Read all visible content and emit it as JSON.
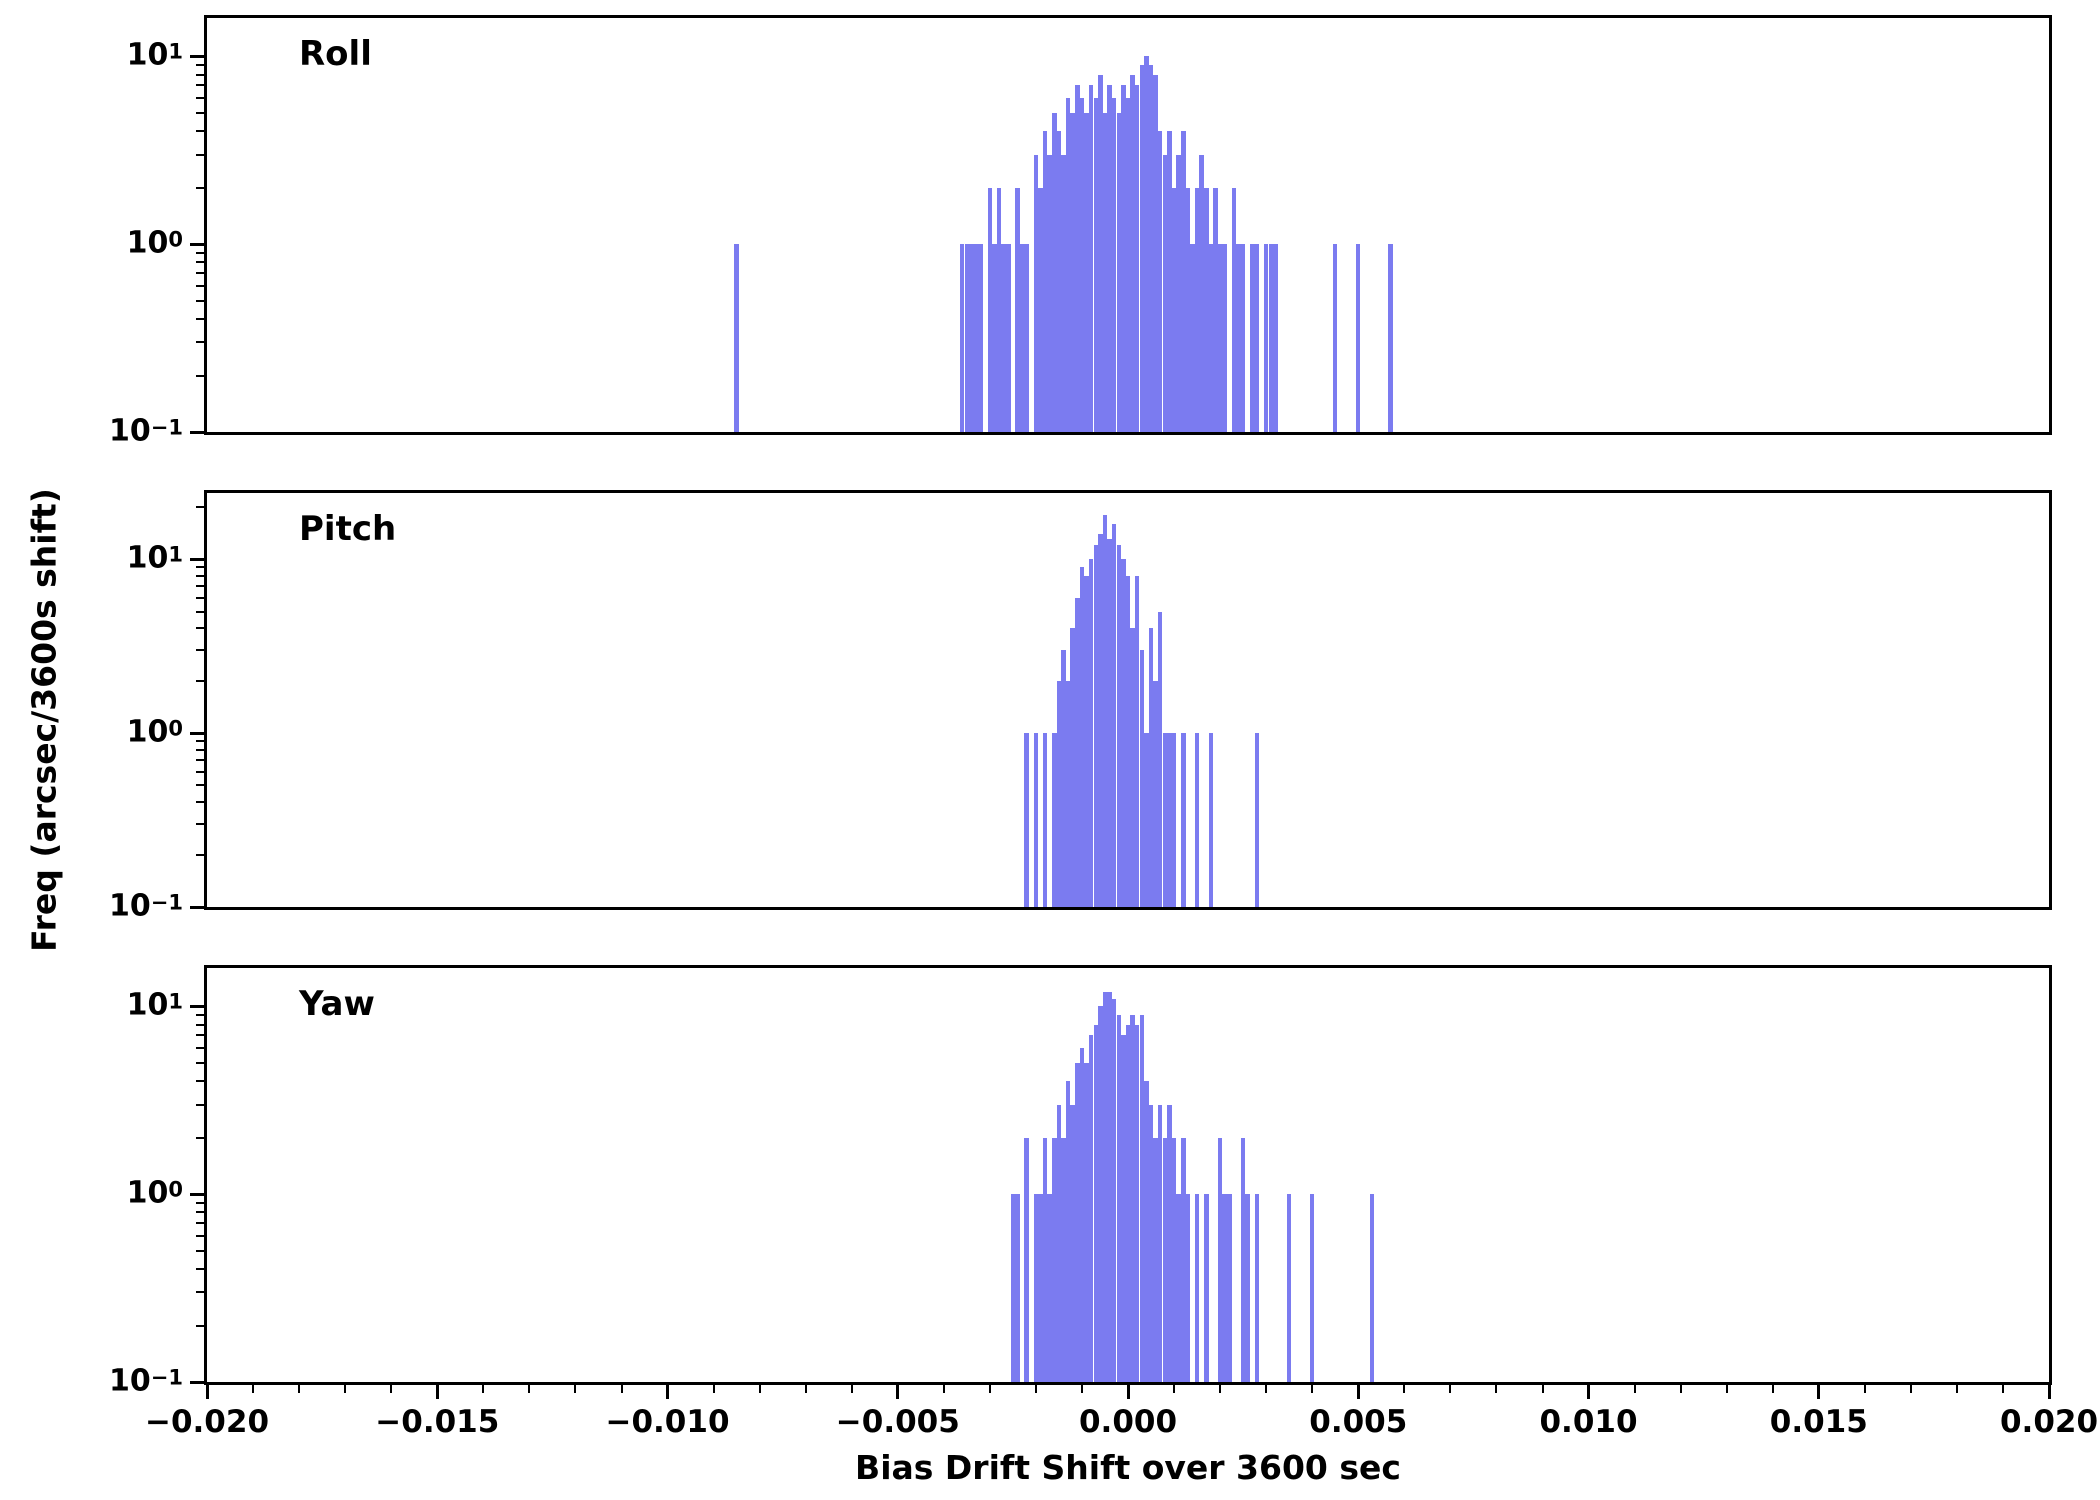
{
  "chart_data": {
    "type": "bar",
    "subtype": "histogram",
    "title": "",
    "xlabel": "Bias Drift Shift over 3600 sec",
    "ylabel": "Freq (arcsec/3600s shift)",
    "yscale": "log",
    "grid": false,
    "legend": "none",
    "bar_color": "#7b7bf0",
    "bin_width": 0.0001,
    "xlim": [
      -0.02,
      0.02
    ],
    "xticks": [
      {
        "v": -0.02,
        "label": "−0.020"
      },
      {
        "v": -0.015,
        "label": "−0.015"
      },
      {
        "v": -0.01,
        "label": "−0.010"
      },
      {
        "v": -0.005,
        "label": "−0.005"
      },
      {
        "v": 0.0,
        "label": "0.000"
      },
      {
        "v": 0.005,
        "label": "0.005"
      },
      {
        "v": 0.01,
        "label": "0.010"
      },
      {
        "v": 0.015,
        "label": "0.015"
      },
      {
        "v": 0.02,
        "label": "0.020"
      }
    ],
    "xtick_minor_step": 0.001,
    "yticks": [
      {
        "exp": 1,
        "label": "10^1"
      },
      {
        "exp": 0,
        "label": "10^0"
      },
      {
        "exp": -1,
        "label": "10^-1"
      }
    ],
    "panels": [
      {
        "title": "Roll",
        "ylim": [
          0.1,
          16
        ],
        "bars": [
          [
            -0.0085,
            1
          ],
          [
            -0.0036,
            1
          ],
          [
            -0.0035,
            1
          ],
          [
            -0.0034,
            1
          ],
          [
            -0.0033,
            1
          ],
          [
            -0.0032,
            1
          ],
          [
            -0.003,
            2
          ],
          [
            -0.0029,
            1
          ],
          [
            -0.0028,
            2
          ],
          [
            -0.0027,
            1
          ],
          [
            -0.0026,
            1
          ],
          [
            -0.0024,
            2
          ],
          [
            -0.0023,
            1
          ],
          [
            -0.0022,
            1
          ],
          [
            -0.002,
            3
          ],
          [
            -0.0019,
            2
          ],
          [
            -0.0018,
            4
          ],
          [
            -0.0017,
            3
          ],
          [
            -0.0016,
            5
          ],
          [
            -0.0015,
            4
          ],
          [
            -0.0014,
            3
          ],
          [
            -0.0013,
            6
          ],
          [
            -0.0012,
            5
          ],
          [
            -0.0011,
            7
          ],
          [
            -0.001,
            6
          ],
          [
            -0.0009,
            5
          ],
          [
            -0.0008,
            7
          ],
          [
            -0.0007,
            6
          ],
          [
            -0.0006,
            8
          ],
          [
            -0.0005,
            5
          ],
          [
            -0.0004,
            7
          ],
          [
            -0.0003,
            6
          ],
          [
            -0.0002,
            5
          ],
          [
            -0.0001,
            7
          ],
          [
            0,
            6
          ],
          [
            0.0001,
            8
          ],
          [
            0.0002,
            7
          ],
          [
            0.0003,
            9
          ],
          [
            0.0004,
            10
          ],
          [
            0.0005,
            9
          ],
          [
            0.0006,
            8
          ],
          [
            0.0007,
            4
          ],
          [
            0.0008,
            3
          ],
          [
            0.0009,
            4
          ],
          [
            0.001,
            2
          ],
          [
            0.0011,
            3
          ],
          [
            0.0012,
            4
          ],
          [
            0.0013,
            2
          ],
          [
            0.0014,
            1
          ],
          [
            0.0015,
            2
          ],
          [
            0.0016,
            3
          ],
          [
            0.0017,
            2
          ],
          [
            0.0018,
            1
          ],
          [
            0.0019,
            2
          ],
          [
            0.002,
            1
          ],
          [
            0.0021,
            1
          ],
          [
            0.0023,
            2
          ],
          [
            0.0024,
            1
          ],
          [
            0.0025,
            1
          ],
          [
            0.0027,
            1
          ],
          [
            0.0028,
            1
          ],
          [
            0.003,
            1
          ],
          [
            0.0031,
            1
          ],
          [
            0.0032,
            1
          ],
          [
            0.0045,
            1
          ],
          [
            0.005,
            1
          ],
          [
            0.0057,
            1
          ]
        ]
      },
      {
        "title": "Pitch",
        "ylim": [
          0.1,
          24
        ],
        "bars": [
          [
            -0.0022,
            1
          ],
          [
            -0.002,
            1
          ],
          [
            -0.0018,
            1
          ],
          [
            -0.0016,
            1
          ],
          [
            -0.0015,
            2
          ],
          [
            -0.0014,
            3
          ],
          [
            -0.0013,
            2
          ],
          [
            -0.0012,
            4
          ],
          [
            -0.0011,
            6
          ],
          [
            -0.001,
            9
          ],
          [
            -0.0009,
            8
          ],
          [
            -0.0008,
            10
          ],
          [
            -0.0007,
            12
          ],
          [
            -0.0006,
            14
          ],
          [
            -0.0005,
            18
          ],
          [
            -0.0004,
            13
          ],
          [
            -0.0003,
            16
          ],
          [
            -0.0002,
            12
          ],
          [
            -0.0001,
            10
          ],
          [
            0,
            8
          ],
          [
            0.0001,
            4
          ],
          [
            0.0002,
            8
          ],
          [
            0.0003,
            3
          ],
          [
            0.0004,
            1
          ],
          [
            0.0005,
            4
          ],
          [
            0.0006,
            2
          ],
          [
            0.0007,
            5
          ],
          [
            0.0008,
            1
          ],
          [
            0.0009,
            1
          ],
          [
            0.001,
            1
          ],
          [
            0.0012,
            1
          ],
          [
            0.0015,
            1
          ],
          [
            0.0018,
            1
          ],
          [
            0.0028,
            1
          ]
        ]
      },
      {
        "title": "Yaw",
        "ylim": [
          0.1,
          16
        ],
        "bars": [
          [
            -0.0025,
            1
          ],
          [
            -0.0024,
            1
          ],
          [
            -0.0022,
            2
          ],
          [
            -0.002,
            1
          ],
          [
            -0.0019,
            1
          ],
          [
            -0.0018,
            2
          ],
          [
            -0.0017,
            1
          ],
          [
            -0.0016,
            2
          ],
          [
            -0.0015,
            3
          ],
          [
            -0.0014,
            2
          ],
          [
            -0.0013,
            4
          ],
          [
            -0.0012,
            3
          ],
          [
            -0.0011,
            5
          ],
          [
            -0.001,
            6
          ],
          [
            -0.0009,
            5
          ],
          [
            -0.0008,
            7
          ],
          [
            -0.0007,
            8
          ],
          [
            -0.0006,
            10
          ],
          [
            -0.0005,
            12
          ],
          [
            -0.0004,
            12
          ],
          [
            -0.0003,
            11
          ],
          [
            -0.0002,
            9
          ],
          [
            -0.0001,
            7
          ],
          [
            0,
            8
          ],
          [
            0.0001,
            9
          ],
          [
            0.0002,
            8
          ],
          [
            0.0003,
            9
          ],
          [
            0.0004,
            4
          ],
          [
            0.0005,
            3
          ],
          [
            0.0006,
            2
          ],
          [
            0.0007,
            3
          ],
          [
            0.0008,
            2
          ],
          [
            0.0009,
            3
          ],
          [
            0.001,
            2
          ],
          [
            0.0011,
            1
          ],
          [
            0.0012,
            2
          ],
          [
            0.0013,
            1
          ],
          [
            0.0015,
            1
          ],
          [
            0.0017,
            1
          ],
          [
            0.002,
            2
          ],
          [
            0.0021,
            1
          ],
          [
            0.0022,
            1
          ],
          [
            0.0025,
            2
          ],
          [
            0.0026,
            1
          ],
          [
            0.0028,
            1
          ],
          [
            0.0035,
            1
          ],
          [
            0.004,
            1
          ],
          [
            0.0053,
            1
          ]
        ]
      }
    ]
  }
}
